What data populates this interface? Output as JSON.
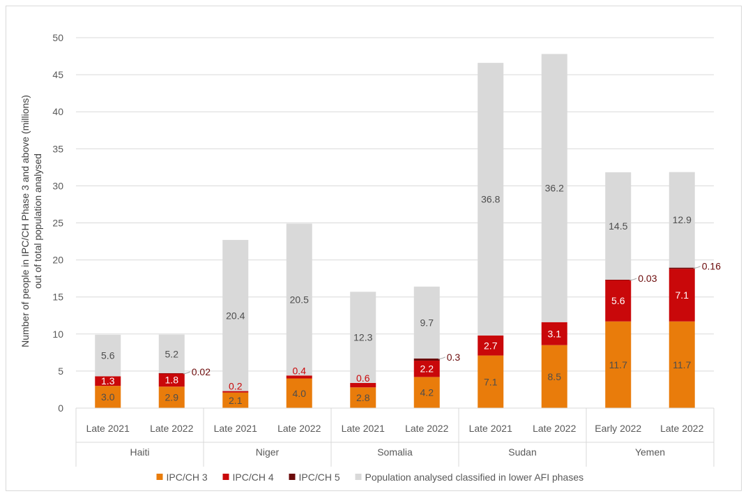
{
  "chart_data": {
    "type": "bar",
    "stacked": true,
    "title": "",
    "ylabel_line1": "Number of people in IPC/CH Phase 3 and above (millions)",
    "ylabel_line2": "out of total population analysed",
    "ylim": [
      0,
      50
    ],
    "yticks": [
      "0",
      "5",
      "10",
      "15",
      "20",
      "25",
      "30",
      "35",
      "40",
      "45",
      "50"
    ],
    "grid": true,
    "legend_position": "bottom",
    "groups": [
      {
        "name": "Haiti",
        "periods": [
          "Late 2021",
          "Late 2022"
        ]
      },
      {
        "name": "Niger",
        "periods": [
          "Late 2021",
          "Late 2022"
        ]
      },
      {
        "name": "Somalia",
        "periods": [
          "Late 2021",
          "Late 2022"
        ]
      },
      {
        "name": "Sudan",
        "periods": [
          "Late 2021",
          "Late 2022"
        ]
      },
      {
        "name": "Yemen",
        "periods": [
          "Early 2022",
          "Late 2022"
        ]
      }
    ],
    "series": [
      {
        "name": "IPC/CH 3",
        "color": "#e97c0b",
        "label_color": "#4d4d4d",
        "values": [
          3.0,
          2.9,
          2.1,
          4.0,
          2.8,
          4.2,
          7.1,
          8.5,
          11.7,
          11.7
        ],
        "labels": [
          "3.0",
          "2.9",
          "2.1",
          "4.0",
          "2.8",
          "4.2",
          "7.1",
          "8.5",
          "11.7",
          "11.7"
        ]
      },
      {
        "name": "IPC/CH 4",
        "color": "#c9080a",
        "label_color": "#ffffff",
        "outside_label_color": "#c9080a",
        "values": [
          1.3,
          1.8,
          0.2,
          0.4,
          0.6,
          2.2,
          2.7,
          3.1,
          5.6,
          7.1
        ],
        "labels": [
          "1.3",
          "1.8",
          "0.2",
          "0.4",
          "0.6",
          "2.2",
          "2.7",
          "3.1",
          "5.6",
          "7.1"
        ]
      },
      {
        "name": "IPC/CH 5",
        "color": "#6b0a0a",
        "label_color": "#6b0a0a",
        "values": [
          0,
          0.02,
          0,
          0,
          0,
          0.3,
          0,
          0,
          0.03,
          0.16
        ],
        "labels": [
          "",
          "0.02",
          "",
          "",
          "",
          "0.3",
          "",
          "",
          "0.03",
          "0.16"
        ]
      },
      {
        "name": "Population analysed classified in lower AFI phases",
        "color": "#d9d9d9",
        "label_color": "#4d4d4d",
        "values": [
          5.6,
          5.2,
          20.4,
          20.5,
          12.3,
          9.7,
          36.8,
          36.2,
          14.5,
          12.9
        ],
        "labels": [
          "5.6",
          "5.2",
          "20.4",
          "20.5",
          "12.3",
          "9.7",
          "36.8",
          "36.2",
          "14.5",
          "12.9"
        ]
      }
    ]
  }
}
